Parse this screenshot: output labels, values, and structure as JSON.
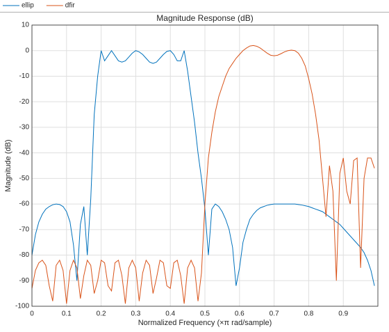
{
  "chart_data": {
    "type": "line",
    "title": "Magnitude Response (dB)",
    "x_label": "Normalized Frequency (×π rad/sample)",
    "y_label": "Magnitude (dB)",
    "x": [
      0,
      0.01,
      0.02,
      0.03,
      0.04,
      0.05,
      0.06,
      0.07,
      0.08,
      0.09,
      0.1,
      0.11,
      0.12,
      0.13,
      0.14,
      0.15,
      0.16,
      0.17,
      0.18,
      0.19,
      0.2,
      0.21,
      0.22,
      0.23,
      0.24,
      0.25,
      0.26,
      0.27,
      0.28,
      0.29,
      0.3,
      0.31,
      0.32,
      0.33,
      0.34,
      0.35,
      0.36,
      0.37,
      0.38,
      0.39,
      0.4,
      0.41,
      0.42,
      0.43,
      0.44,
      0.45,
      0.46,
      0.47,
      0.48,
      0.49,
      0.5,
      0.51,
      0.52,
      0.53,
      0.54,
      0.55,
      0.56,
      0.57,
      0.58,
      0.59,
      0.6,
      0.61,
      0.62,
      0.63,
      0.64,
      0.65,
      0.66,
      0.67,
      0.68,
      0.69,
      0.7,
      0.71,
      0.72,
      0.73,
      0.74,
      0.75,
      0.76,
      0.77,
      0.78,
      0.79,
      0.8,
      0.81,
      0.82,
      0.83,
      0.84,
      0.85,
      0.86,
      0.87,
      0.88,
      0.89,
      0.9,
      0.91,
      0.92,
      0.93,
      0.94,
      0.95,
      0.96,
      0.97,
      0.98,
      0.99
    ],
    "series": [
      {
        "name": "ellip",
        "color": "#0072bd",
        "values": [
          -80,
          -72,
          -67,
          -64,
          -62,
          -61,
          -60.3,
          -60,
          -60.2,
          -61,
          -63,
          -67,
          -76,
          -90,
          -68,
          -61,
          -80,
          -58,
          -25,
          -10,
          0,
          -4,
          -2,
          0,
          -2,
          -4,
          -4.5,
          -4,
          -2.5,
          -1,
          0,
          -0.5,
          -1.5,
          -3,
          -4.5,
          -5,
          -4.5,
          -3,
          -1.5,
          -0.3,
          0,
          -1.5,
          -4,
          -4,
          0,
          -8,
          -18,
          -28,
          -40,
          -50,
          -62,
          -80,
          -62,
          -60,
          -61,
          -63,
          -66,
          -70,
          -77,
          -92,
          -85,
          -75,
          -70,
          -66,
          -64,
          -62.5,
          -61.5,
          -61,
          -60.5,
          -60.2,
          -60,
          -60,
          -60,
          -60,
          -60,
          -60,
          -60,
          -60.2,
          -60.4,
          -60.7,
          -61,
          -61.5,
          -62,
          -62.5,
          -63,
          -64,
          -65,
          -66,
          -67,
          -68,
          -69.5,
          -71,
          -72.5,
          -74,
          -75.5,
          -77,
          -79,
          -82,
          -86,
          -92
        ]
      },
      {
        "name": "dfir",
        "color": "#d95319",
        "values": [
          -93,
          -86,
          -83,
          -82,
          -84,
          -92,
          -98,
          -84,
          -82,
          -86,
          -99,
          -86,
          -82,
          -85,
          -97,
          -88,
          -82,
          -84,
          -95,
          -90,
          -82,
          -83,
          -92,
          -94,
          -83,
          -82,
          -88,
          -99,
          -85,
          -82,
          -85,
          -98,
          -87,
          -82,
          -84,
          -95,
          -89,
          -82,
          -83,
          -92,
          -93,
          -83,
          -82,
          -88,
          -99,
          -85,
          -82,
          -85,
          -98,
          -87,
          -60,
          -42,
          -32,
          -24,
          -18,
          -14,
          -10,
          -7,
          -5,
          -3,
          -1.5,
          0,
          1,
          1.8,
          2,
          1.7,
          1,
          0,
          -1,
          -1.8,
          -2,
          -1.8,
          -1.2,
          -0.5,
          0,
          0.2,
          0,
          -1,
          -3,
          -6,
          -11,
          -17,
          -25,
          -35,
          -50,
          -65,
          -45,
          -55,
          -90,
          -48,
          -42,
          -55,
          -60,
          -43,
          -42,
          -85,
          -50,
          -42,
          -42,
          -46
        ]
      }
    ],
    "xlim": [
      0,
      1
    ],
    "ylim": [
      -100,
      10
    ],
    "xticks": [
      0,
      0.1,
      0.2,
      0.3,
      0.4,
      0.5,
      0.6,
      0.7,
      0.8,
      0.9
    ],
    "yticks": [
      -100,
      -90,
      -80,
      -70,
      -60,
      -50,
      -40,
      -30,
      -20,
      -10,
      0,
      10
    ],
    "grid": true
  }
}
